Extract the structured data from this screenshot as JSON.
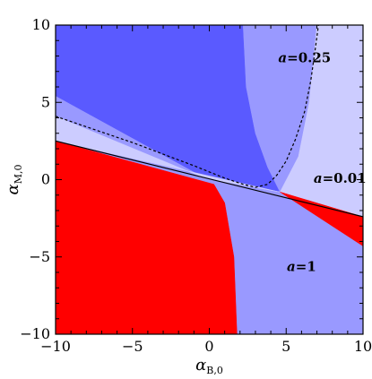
{
  "chart_data": {
    "type": "area",
    "xlabel": "α_{B,0}",
    "ylabel": "α_{M,0}",
    "xlabel_main": "α",
    "xlabel_sub": "B,0",
    "ylabel_main": "α",
    "ylabel_sub": "M,0",
    "xlim": [
      -10,
      10
    ],
    "ylim": [
      -10,
      10
    ],
    "xticks": [
      -10,
      -5,
      0,
      5,
      10
    ],
    "yticks": [
      -10,
      -5,
      0,
      5,
      10
    ],
    "xtick_labels": [
      "−10",
      "−5",
      "0",
      "5",
      "10"
    ],
    "ytick_labels": [
      "−10",
      "−5",
      "0",
      "5",
      "10"
    ],
    "grid": false,
    "regions": [
      {
        "name": "a=1",
        "color": "#5a5aff",
        "polygon": [
          [
            -10,
            10
          ],
          [
            2.2,
            10
          ],
          [
            2.4,
            6
          ],
          [
            3.0,
            3
          ],
          [
            3.8,
            0.8
          ],
          [
            4.6,
            -0.8
          ],
          [
            -0.3,
            0.1
          ],
          [
            -10,
            5.4
          ]
        ]
      },
      {
        "name": "a=0.25",
        "color": "#9999ff",
        "polygon": [
          [
            -10,
            5.4
          ],
          [
            -0.3,
            0.1
          ],
          [
            4.6,
            -0.8
          ],
          [
            3.8,
            0.8
          ],
          [
            3.0,
            3
          ],
          [
            2.4,
            6
          ],
          [
            2.2,
            10
          ],
          [
            10,
            10
          ],
          [
            10,
            -10
          ],
          [
            1.8,
            -10
          ],
          [
            1.6,
            -5
          ],
          [
            1.0,
            -1.5
          ],
          [
            0.3,
            -0.3
          ],
          [
            -10,
            2.5
          ]
        ]
      },
      {
        "name": "a=0.01",
        "color": "#ccccff",
        "polygon": [
          [
            -10,
            4.1
          ],
          [
            -0.3,
            0.1
          ],
          [
            4.6,
            -0.8
          ],
          [
            5.8,
            1.5
          ],
          [
            6.5,
            5
          ],
          [
            7.0,
            10
          ],
          [
            10,
            10
          ],
          [
            10,
            -2.4
          ],
          [
            4.6,
            -0.8
          ],
          [
            -10,
            2.5
          ]
        ]
      },
      {
        "name": "red",
        "color": "#ff0000",
        "polygon": [
          [
            -10,
            2.5
          ],
          [
            0.3,
            -0.3
          ],
          [
            1.0,
            -1.5
          ],
          [
            1.6,
            -5
          ],
          [
            1.8,
            -10
          ],
          [
            -10,
            -10
          ]
        ]
      },
      {
        "name": "red-wedge",
        "color": "#ff0000",
        "polygon": [
          [
            4.6,
            -0.8
          ],
          [
            10,
            -2.4
          ],
          [
            10,
            -4.3
          ]
        ]
      }
    ],
    "lines": [
      {
        "style": "solid",
        "points": [
          [
            -10,
            2.5
          ],
          [
            10,
            -2.4
          ]
        ]
      },
      {
        "style": "dashed",
        "points": [
          [
            -10,
            4.1
          ],
          [
            -5,
            2.4
          ],
          [
            -1,
            0.9
          ],
          [
            1,
            0.1
          ],
          [
            2.2,
            -0.3
          ],
          [
            3.0,
            -0.5
          ],
          [
            3.8,
            -0.3
          ],
          [
            4.4,
            0.3
          ],
          [
            5.0,
            1.2
          ],
          [
            5.6,
            2.6
          ],
          [
            6.2,
            4.4
          ],
          [
            6.6,
            6.4
          ],
          [
            6.9,
            8.5
          ],
          [
            7.1,
            10
          ]
        ]
      }
    ],
    "annotations": [
      {
        "text": "a=0.25",
        "x": 6.2,
        "y": 7.6
      },
      {
        "text": "a=0.01",
        "x": 8.5,
        "y": -0.2
      },
      {
        "text": "a=1",
        "x": 6.0,
        "y": -5.9
      }
    ]
  }
}
